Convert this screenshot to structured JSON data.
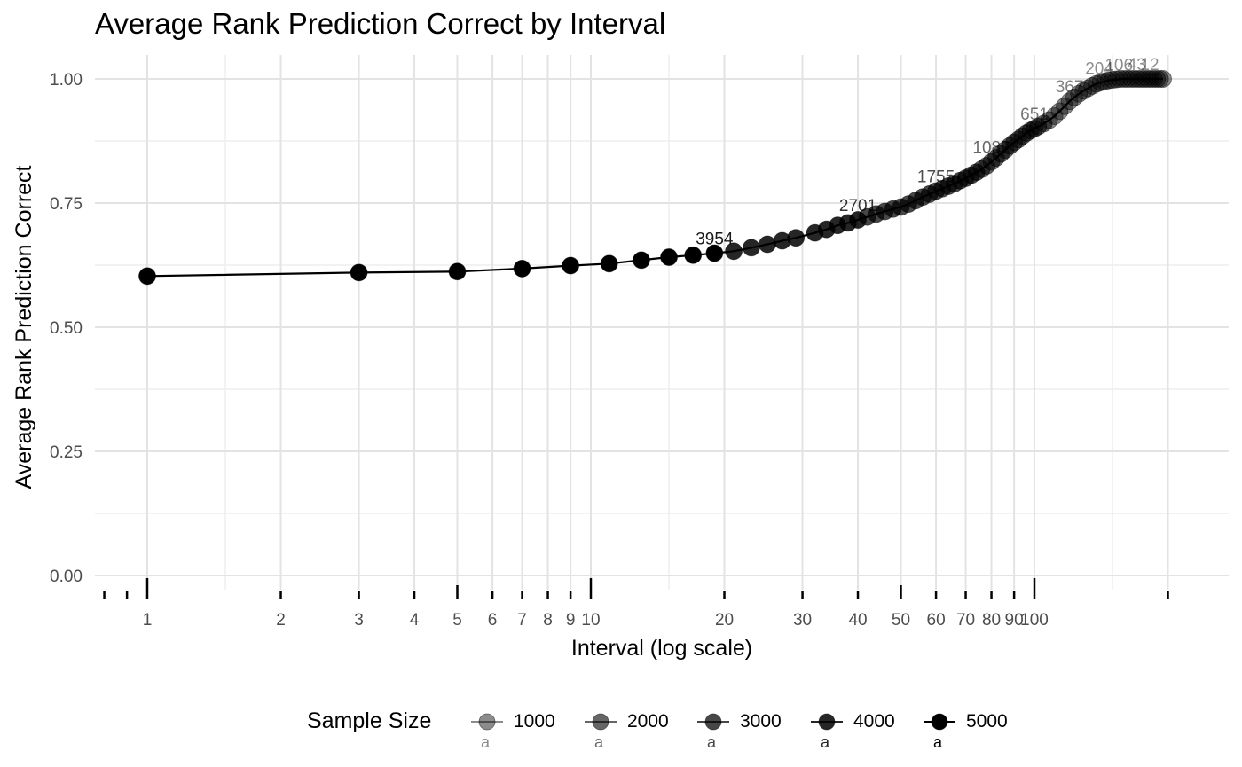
{
  "chart_data": {
    "type": "line",
    "title": "Average Rank Prediction Correct by Interval",
    "xlabel": "Interval (log scale)",
    "ylabel": "Average Rank Prediction Correct",
    "x_scale": "log10",
    "xlim": [
      0.75,
      200
    ],
    "ylim": [
      0,
      1
    ],
    "y_ticks": [
      0,
      0.25,
      0.5,
      0.75,
      1
    ],
    "y_tick_labels": [
      "0.00",
      "0.25",
      "0.50",
      "0.75",
      "1.00"
    ],
    "x_ticks": [
      1,
      2,
      3,
      4,
      5,
      6,
      7,
      8,
      9,
      10,
      20,
      30,
      40,
      50,
      60,
      70,
      80,
      90,
      100
    ],
    "x_tick_labels": [
      "1",
      "2",
      "3",
      "4",
      "5",
      "6",
      "7",
      "8",
      "9",
      "10",
      "20",
      "30",
      "40",
      "50",
      "60",
      "70",
      "80",
      "90",
      "100"
    ],
    "grid": true,
    "legend": {
      "title": "Sample Size",
      "position": "bottom",
      "key_text": "a",
      "items": [
        {
          "label": "1000",
          "opacity": 0.45
        },
        {
          "label": "2000",
          "opacity": 0.6
        },
        {
          "label": "3000",
          "opacity": 0.72
        },
        {
          "label": "4000",
          "opacity": 0.85
        },
        {
          "label": "5000",
          "opacity": 1.0
        }
      ]
    },
    "series": [
      {
        "x": [
          1,
          3,
          5,
          7,
          9,
          11,
          13,
          15,
          17,
          19,
          21,
          23,
          25,
          27,
          29,
          32,
          34,
          36,
          38,
          40,
          42,
          44,
          46,
          48,
          50,
          52,
          54,
          56,
          58,
          60,
          62,
          64,
          66,
          68,
          70,
          72,
          74,
          76,
          78,
          80,
          82,
          84,
          86,
          88,
          90,
          92,
          94,
          96,
          98,
          100,
          102,
          105,
          108,
          111,
          114,
          117,
          120,
          123,
          126,
          129,
          132,
          135,
          138,
          141,
          144,
          147,
          150,
          153,
          156,
          159,
          162,
          165,
          168,
          171,
          174,
          177,
          180,
          183,
          186,
          189,
          192,
          195
        ],
        "y": [
          0.603,
          0.61,
          0.612,
          0.618,
          0.624,
          0.628,
          0.635,
          0.641,
          0.645,
          0.649,
          0.653,
          0.66,
          0.667,
          0.674,
          0.68,
          0.69,
          0.697,
          0.705,
          0.71,
          0.716,
          0.722,
          0.728,
          0.733,
          0.738,
          0.742,
          0.748,
          0.755,
          0.762,
          0.768,
          0.774,
          0.779,
          0.784,
          0.789,
          0.795,
          0.8,
          0.806,
          0.812,
          0.818,
          0.825,
          0.833,
          0.841,
          0.849,
          0.857,
          0.865,
          0.872,
          0.878,
          0.885,
          0.891,
          0.896,
          0.9,
          0.904,
          0.91,
          0.917,
          0.925,
          0.935,
          0.945,
          0.955,
          0.963,
          0.97,
          0.976,
          0.981,
          0.986,
          0.99,
          0.993,
          0.995,
          0.997,
          0.998,
          0.999,
          1.0,
          1.0,
          1.0,
          1.0,
          1.0,
          1.0,
          1.0,
          1.0,
          1.0,
          1.0,
          1.0,
          1.0,
          1.0,
          1.0
        ],
        "sample_size": [
          5000,
          5000,
          5000,
          5000,
          5000,
          5000,
          5000,
          5000,
          5000,
          5000,
          4000,
          4000,
          4000,
          4000,
          4000,
          4000,
          4000,
          4000,
          4000,
          4000,
          3000,
          3000,
          3000,
          3000,
          3000,
          3000,
          3000,
          3000,
          3000,
          3000,
          3000,
          3000,
          3000,
          3000,
          3000,
          3000,
          3000,
          2000,
          2000,
          2000,
          2000,
          2000,
          2000,
          2000,
          2000,
          2000,
          2000,
          2000,
          2000,
          2000,
          2000,
          2000,
          1000,
          1000,
          1000,
          1000,
          1000,
          1000,
          1000,
          1000,
          1000,
          1000,
          1000,
          1000,
          1000,
          1000,
          1000,
          1000,
          1000,
          1000,
          1000,
          1000,
          1000,
          1000,
          1000,
          1000,
          1000,
          1000,
          1000,
          1000,
          1000,
          1000
        ]
      }
    ],
    "annotations": [
      {
        "text": "3954",
        "x": 19,
        "y": 0.649,
        "opacity": 0.9
      },
      {
        "text": "2701",
        "x": 40,
        "y": 0.716,
        "opacity": 0.8
      },
      {
        "text": "1755",
        "x": 60,
        "y": 0.774,
        "opacity": 0.7
      },
      {
        "text": "1087",
        "x": 80,
        "y": 0.833,
        "opacity": 0.6
      },
      {
        "text": "651",
        "x": 100,
        "y": 0.9,
        "opacity": 0.55
      },
      {
        "text": "367",
        "x": 120,
        "y": 0.955,
        "opacity": 0.5
      },
      {
        "text": "204",
        "x": 140,
        "y": 0.992,
        "opacity": 0.45
      },
      {
        "text": "106",
        "x": 155,
        "y": 0.999,
        "opacity": 0.45
      },
      {
        "text": "43",
        "x": 170,
        "y": 1.0,
        "opacity": 0.45
      },
      {
        "text": "12",
        "x": 182,
        "y": 1.0,
        "opacity": 0.45
      }
    ]
  }
}
